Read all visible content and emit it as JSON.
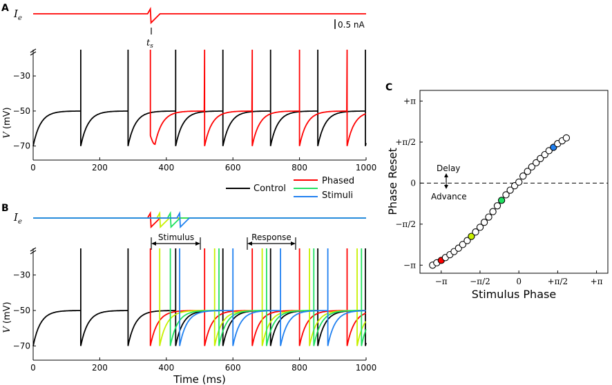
{
  "colors": {
    "control": "#000000",
    "phased": "#ff0000",
    "yellow": "#c8f000",
    "green": "#20e060",
    "blue": "#2080f0"
  },
  "chart_data": [
    {
      "panel": "A",
      "type": "line",
      "title": "",
      "ylabel": "V (mV)",
      "current_label": "Ie",
      "scale_bar": "0.5 nA",
      "stim_marker": "ts",
      "xlim": [
        0,
        1000
      ],
      "ylim": [
        -78,
        -15
      ],
      "xticks": [
        "0",
        "200",
        "400",
        "600",
        "800",
        "1000"
      ],
      "yticks": [
        "-30",
        "-50",
        "-70"
      ],
      "reset_mV": -70,
      "plateau_mV": -50,
      "peak_mV": -15,
      "series": [
        {
          "name": "Control",
          "color": "control",
          "spikes": [
            143,
            285,
            428,
            570,
            713,
            855,
            998
          ]
        },
        {
          "name": "Phased",
          "color": "phased",
          "stim_time": 352,
          "dip_mV": -69,
          "spikes": [
            352,
            515,
            658,
            800,
            943
          ]
        }
      ]
    },
    {
      "panel": "B",
      "type": "line",
      "xlabel": "Time (ms)",
      "ylabel": "V (mV)",
      "current_label": "Ie",
      "xlim": [
        0,
        1000
      ],
      "ylim": [
        -78,
        -15
      ],
      "xticks": [
        "0",
        "200",
        "400",
        "600",
        "800",
        "1000"
      ],
      "yticks": [
        "-30",
        "-50",
        "-70"
      ],
      "stimulus_window": [
        352,
        500
      ],
      "response_window": [
        642,
        790
      ],
      "stimulus_label": "Stimulus",
      "response_label": "Response",
      "legend": {
        "control": "Control",
        "phased": "Phased",
        "stimuli": "Stimuli"
      },
      "series": [
        {
          "name": "Control",
          "color": "control",
          "spikes": [
            143,
            285,
            428,
            570,
            713,
            855,
            998
          ]
        },
        {
          "name": "Phased",
          "color": "phased",
          "stim_time": 352,
          "spikes": [
            352,
            515,
            658,
            800,
            943
          ]
        },
        {
          "name": "Stimulus 2",
          "color": "yellow",
          "stim_time": 380,
          "spikes": [
            380,
            545,
            688,
            830,
            973
          ]
        },
        {
          "name": "Stimulus 3",
          "color": "green",
          "stim_time": 412,
          "spikes": [
            412,
            558,
            701,
            843,
            986
          ]
        },
        {
          "name": "Stimulus 4",
          "color": "blue",
          "stim_time": 440,
          "spikes": [
            440,
            600,
            743,
            885
          ]
        }
      ]
    },
    {
      "panel": "C",
      "type": "scatter",
      "xlabel": "Stimulus Phase",
      "ylabel": "Phase Reset",
      "xlim": [
        -4.0,
        3.6
      ],
      "ylim": [
        -3.45,
        3.55
      ],
      "xticks": [
        "−π",
        "−π/2",
        "0",
        "+π/2",
        "+π"
      ],
      "yticks": [
        "+π",
        "+π/2",
        "0",
        "−π/2",
        "−π"
      ],
      "delay_label": "Delay",
      "advance_label": "Advance",
      "x": [
        -3.49,
        -3.32,
        -3.14,
        -2.97,
        -2.79,
        -2.62,
        -2.44,
        -2.27,
        -2.09,
        -1.92,
        -1.75,
        -1.57,
        -1.4,
        -1.22,
        -1.05,
        -0.87,
        -0.7,
        -0.52,
        -0.35,
        -0.17,
        0.0,
        0.17,
        0.35,
        0.52,
        0.7,
        0.87,
        1.05,
        1.22,
        1.4,
        1.57,
        1.75,
        1.92
      ],
      "y": [
        -3.14,
        -3.05,
        -2.96,
        -2.85,
        -2.74,
        -2.62,
        -2.49,
        -2.35,
        -2.2,
        -2.04,
        -1.87,
        -1.69,
        -1.5,
        -1.3,
        -1.09,
        -0.87,
        -0.66,
        -0.45,
        -0.27,
        -0.1,
        0.04,
        0.27,
        0.45,
        0.62,
        0.78,
        0.94,
        1.09,
        1.24,
        1.37,
        1.51,
        1.62,
        1.73
      ],
      "highlights": [
        {
          "index": 2,
          "color": "phased"
        },
        {
          "index": 9,
          "color": "yellow"
        },
        {
          "index": 16,
          "color": "green"
        },
        {
          "index": 28,
          "color": "blue"
        }
      ]
    }
  ]
}
